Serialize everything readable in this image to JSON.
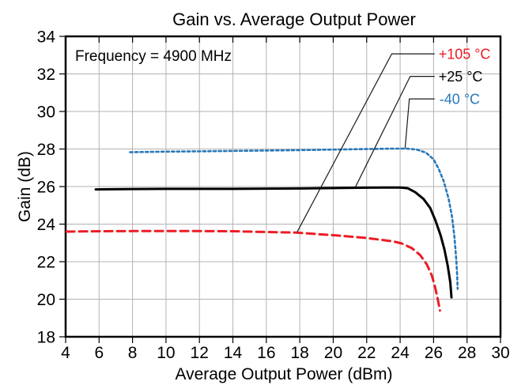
{
  "page": {
    "background": "#ffffff"
  },
  "chart_data": {
    "type": "line",
    "title": "Gain vs. Average Output Power",
    "annotation": "Frequency = 4900 MHz",
    "xlabel": "Average Output Power (dBm)",
    "ylabel": "Gain (dB)",
    "xlim": [
      4,
      30
    ],
    "ylim": [
      18,
      34
    ],
    "xticks": [
      4,
      6,
      8,
      10,
      12,
      14,
      16,
      18,
      20,
      22,
      24,
      26,
      28,
      30
    ],
    "yticks": [
      18,
      20,
      22,
      24,
      26,
      28,
      30,
      32,
      34
    ],
    "grid": true,
    "grid_color": "#b3b3b3",
    "frame_color": "#000000",
    "leader_color": "#1a1a1a",
    "legend_position": "top-right callouts",
    "series": [
      {
        "name": "+105 °C",
        "color": "#ed1c24",
        "line_style": "long-dash",
        "width": 3,
        "points": [
          [
            4.05,
            23.6
          ],
          [
            6,
            23.62
          ],
          [
            8,
            23.63
          ],
          [
            10,
            23.63
          ],
          [
            12,
            23.63
          ],
          [
            14,
            23.62
          ],
          [
            16,
            23.58
          ],
          [
            17.8,
            23.55
          ],
          [
            19,
            23.47
          ],
          [
            20,
            23.41
          ],
          [
            21,
            23.34
          ],
          [
            22,
            23.26
          ],
          [
            23,
            23.15
          ],
          [
            23.6,
            23.08
          ],
          [
            24.1,
            22.97
          ],
          [
            24.7,
            22.72
          ],
          [
            25.2,
            22.35
          ],
          [
            25.6,
            21.85
          ],
          [
            25.9,
            21.25
          ],
          [
            26.1,
            20.6
          ],
          [
            26.25,
            20.0
          ],
          [
            26.38,
            19.4
          ]
        ]
      },
      {
        "name": "+25 °C",
        "color": "#000000",
        "line_style": "solid",
        "width": 3,
        "points": [
          [
            5.8,
            25.85
          ],
          [
            8,
            25.87
          ],
          [
            10,
            25.88
          ],
          [
            12,
            25.88
          ],
          [
            14,
            25.88
          ],
          [
            16,
            25.89
          ],
          [
            18,
            25.9
          ],
          [
            20,
            25.92
          ],
          [
            22,
            25.94
          ],
          [
            23,
            25.95
          ],
          [
            24,
            25.95
          ],
          [
            24.45,
            25.91
          ],
          [
            24.9,
            25.7
          ],
          [
            25.4,
            25.34
          ],
          [
            25.8,
            24.85
          ],
          [
            26.1,
            24.22
          ],
          [
            26.42,
            23.4
          ],
          [
            26.65,
            22.65
          ],
          [
            26.85,
            21.75
          ],
          [
            27.0,
            20.9
          ],
          [
            27.07,
            20.1
          ]
        ]
      },
      {
        "name": "-40 °C",
        "color": "#2878b8",
        "line_style": "dotted",
        "width": 2.6,
        "points": [
          [
            7.85,
            27.83
          ],
          [
            10,
            27.86
          ],
          [
            12,
            27.88
          ],
          [
            14,
            27.9
          ],
          [
            16,
            27.92
          ],
          [
            18,
            27.94
          ],
          [
            20,
            27.97
          ],
          [
            22,
            28.0
          ],
          [
            23.5,
            28.02
          ],
          [
            24.4,
            28.02
          ],
          [
            25.0,
            27.97
          ],
          [
            25.55,
            27.8
          ],
          [
            26.0,
            27.45
          ],
          [
            26.3,
            26.95
          ],
          [
            26.6,
            26.3
          ],
          [
            26.9,
            25.35
          ],
          [
            27.1,
            24.4
          ],
          [
            27.25,
            23.3
          ],
          [
            27.35,
            22.2
          ],
          [
            27.41,
            21.3
          ],
          [
            27.44,
            20.55
          ]
        ]
      }
    ],
    "callouts": [
      {
        "label": "+105 °C",
        "color": "#ed1c24",
        "leader": [
          [
            26.06,
            33.07
          ],
          [
            23.5,
            33.07
          ],
          [
            17.84,
            23.58
          ]
        ],
        "label_at": [
          26.3,
          33.07
        ]
      },
      {
        "label": "+25 °C",
        "color": "#000000",
        "leader": [
          [
            26.06,
            31.87
          ],
          [
            24.6,
            31.87
          ],
          [
            21.3,
            25.93
          ]
        ],
        "label_at": [
          26.3,
          31.87
        ]
      },
      {
        "label": "-40 °C",
        "color": "#2878b8",
        "leader": [
          [
            26.06,
            30.67
          ],
          [
            24.55,
            30.67
          ],
          [
            24.3,
            28.05
          ]
        ],
        "label_at": [
          26.35,
          30.67
        ]
      }
    ]
  }
}
